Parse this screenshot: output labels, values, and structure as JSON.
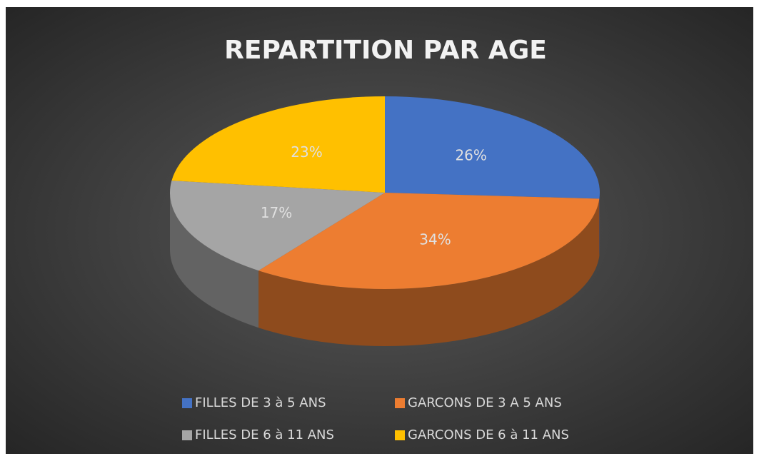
{
  "chart_data": {
    "type": "pie",
    "title": "REPARTITION  PAR AGE",
    "categories": [
      "FILLES DE 3 à 5 ANS",
      "GARCONS DE 3 A 5 ANS",
      "FILLES DE 6 à 11 ANS",
      "GARCONS DE 6 à 11 ANS"
    ],
    "values": [
      26,
      34,
      17,
      23
    ],
    "value_labels": [
      "26%",
      "34%",
      "17%",
      "23%"
    ],
    "colors": [
      "#4472c4",
      "#ed7d31",
      "#a5a5a5",
      "#ffc000"
    ],
    "legend": "bottom"
  }
}
